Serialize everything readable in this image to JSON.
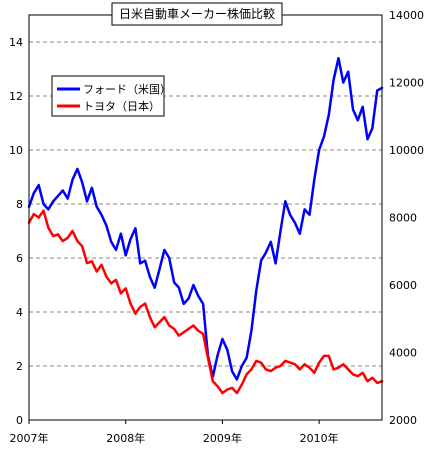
{
  "chart_data": {
    "type": "line",
    "title": "日米自動車メーカー株価比較",
    "x_ticks": [
      "2007年",
      "2008年",
      "2009年",
      "2010年"
    ],
    "y_left": {
      "min": 0,
      "max": 15,
      "ticks": [
        "0",
        "2",
        "4",
        "6",
        "8",
        "10",
        "12",
        "14"
      ]
    },
    "y_right": {
      "min": 2000,
      "max": 14000,
      "ticks": [
        "2000",
        "4000",
        "6000",
        "8000",
        "10000",
        "12000",
        "14000"
      ]
    },
    "grid": "horizontal-dashed",
    "legend_position": "top-left",
    "series": [
      {
        "name": "フォード（米国）",
        "color": "#0000ff",
        "axis": "left",
        "x": [
          2007.0,
          2007.05,
          2007.1,
          2007.15,
          2007.2,
          2007.25,
          2007.3,
          2007.35,
          2007.4,
          2007.45,
          2007.5,
          2007.55,
          2007.6,
          2007.65,
          2007.7,
          2007.75,
          2007.8,
          2007.85,
          2007.9,
          2007.95,
          2008.0,
          2008.05,
          2008.1,
          2008.15,
          2008.2,
          2008.25,
          2008.3,
          2008.35,
          2008.4,
          2008.45,
          2008.5,
          2008.55,
          2008.6,
          2008.65,
          2008.7,
          2008.75,
          2008.8,
          2008.85,
          2008.9,
          2008.95,
          2009.0,
          2009.05,
          2009.1,
          2009.15,
          2009.2,
          2009.25,
          2009.3,
          2009.35,
          2009.4,
          2009.45,
          2009.5,
          2009.55,
          2009.6,
          2009.65,
          2009.7,
          2009.75,
          2009.8,
          2009.85,
          2009.9,
          2009.95,
          2010.0,
          2010.05,
          2010.1,
          2010.15,
          2010.2,
          2010.25,
          2010.3,
          2010.35,
          2010.4,
          2010.45,
          2010.5,
          2010.55,
          2010.6,
          2010.65
        ],
        "values": [
          7.9,
          8.4,
          8.7,
          8.0,
          7.8,
          8.1,
          8.3,
          8.5,
          8.2,
          8.9,
          9.3,
          8.8,
          8.1,
          8.6,
          7.9,
          7.6,
          7.2,
          6.6,
          6.3,
          6.9,
          6.1,
          6.7,
          7.1,
          5.8,
          5.9,
          5.3,
          4.9,
          5.6,
          6.3,
          6.0,
          5.1,
          4.9,
          4.3,
          4.5,
          5.0,
          4.6,
          4.3,
          2.4,
          1.6,
          2.4,
          3.0,
          2.6,
          1.8,
          1.5,
          2.0,
          2.3,
          3.3,
          4.8,
          5.9,
          6.2,
          6.6,
          5.8,
          7.0,
          8.1,
          7.6,
          7.3,
          6.9,
          7.8,
          7.6,
          8.9,
          10.0,
          10.5,
          11.3,
          12.6,
          13.4,
          12.5,
          12.9,
          11.5,
          11.1,
          11.6,
          10.4,
          10.8,
          12.2,
          12.3
        ]
      },
      {
        "name": "トヨタ（日本）",
        "color": "#ff0000",
        "axis": "right",
        "x": [
          2007.0,
          2007.05,
          2007.1,
          2007.15,
          2007.2,
          2007.25,
          2007.3,
          2007.35,
          2007.4,
          2007.45,
          2007.5,
          2007.55,
          2007.6,
          2007.65,
          2007.7,
          2007.75,
          2007.8,
          2007.85,
          2007.9,
          2007.95,
          2008.0,
          2008.05,
          2008.1,
          2008.15,
          2008.2,
          2008.25,
          2008.3,
          2008.35,
          2008.4,
          2008.45,
          2008.5,
          2008.55,
          2008.6,
          2008.65,
          2008.7,
          2008.75,
          2008.8,
          2008.85,
          2008.9,
          2008.95,
          2009.0,
          2009.05,
          2009.1,
          2009.15,
          2009.2,
          2009.25,
          2009.3,
          2009.35,
          2009.4,
          2009.45,
          2009.5,
          2009.55,
          2009.6,
          2009.65,
          2009.7,
          2009.75,
          2009.8,
          2009.85,
          2009.9,
          2009.95,
          2010.0,
          2010.05,
          2010.1,
          2010.15,
          2010.2,
          2010.25,
          2010.3,
          2010.35,
          2010.4,
          2010.45,
          2010.5,
          2010.55,
          2010.6,
          2010.65
        ],
        "values": [
          7850,
          8100,
          8000,
          8200,
          7700,
          7450,
          7500,
          7300,
          7400,
          7600,
          7300,
          7150,
          6650,
          6700,
          6400,
          6600,
          6250,
          6050,
          6150,
          5750,
          5900,
          5450,
          5150,
          5350,
          5450,
          5050,
          4750,
          4900,
          5050,
          4800,
          4700,
          4500,
          4600,
          4700,
          4800,
          4650,
          4550,
          3850,
          3150,
          3000,
          2800,
          2900,
          2950,
          2800,
          3050,
          3350,
          3500,
          3750,
          3700,
          3500,
          3450,
          3550,
          3600,
          3750,
          3700,
          3650,
          3500,
          3650,
          3550,
          3400,
          3700,
          3900,
          3900,
          3500,
          3550,
          3650,
          3500,
          3350,
          3300,
          3400,
          3150,
          3250,
          3100,
          3150
        ]
      }
    ]
  }
}
